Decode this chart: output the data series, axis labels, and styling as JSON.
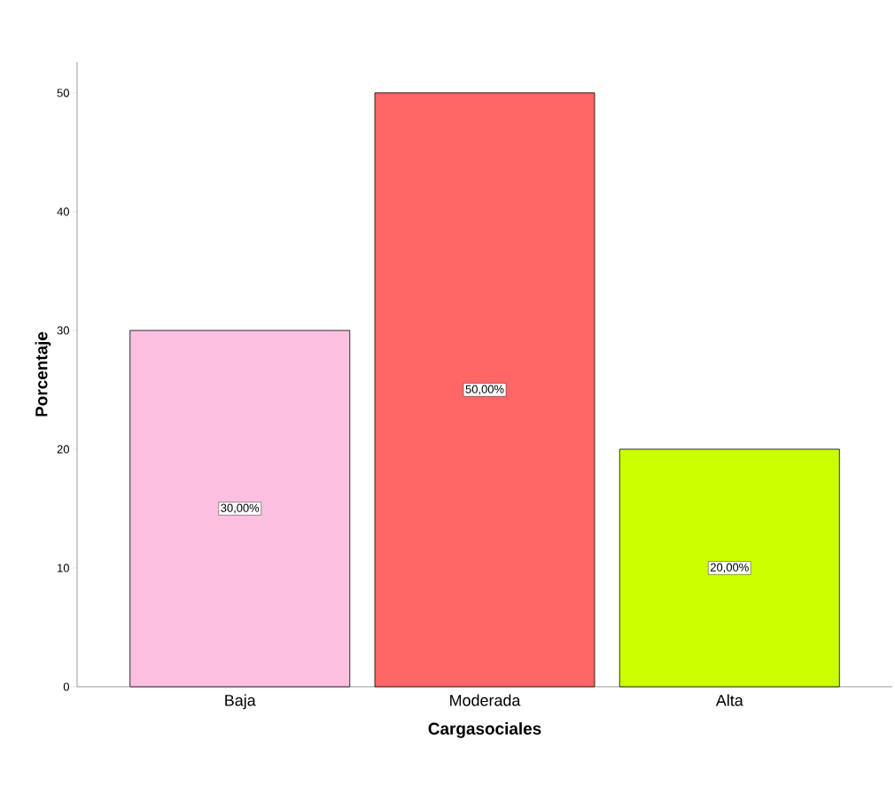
{
  "chart_data": {
    "type": "bar",
    "xlabel": "Cargasociales",
    "ylabel": "Porcentaje",
    "categories": [
      "Baja",
      "Moderada",
      "Alta"
    ],
    "values": [
      30,
      50,
      20
    ],
    "colors": [
      "#fbc0df",
      "#ff6666",
      "#ccff00"
    ],
    "value_labels": [
      "30,00%",
      "50,00%",
      "20,00%"
    ],
    "ylim": [
      0,
      52.6
    ],
    "yticks": [
      0,
      10,
      20,
      30,
      40,
      50
    ],
    "grid": false
  }
}
